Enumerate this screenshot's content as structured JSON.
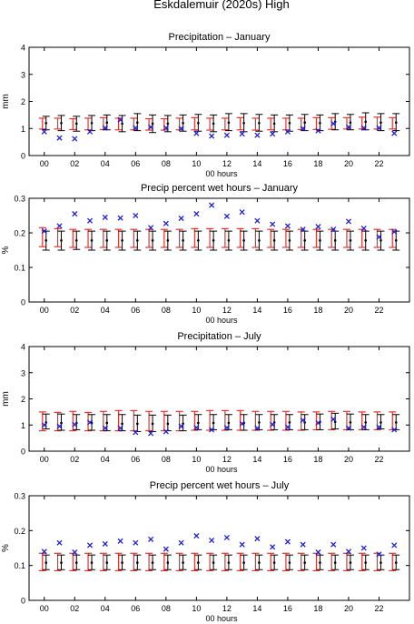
{
  "figure_title": "Eskdalemuir (2020s) High",
  "colors": {
    "model": "#e8322e",
    "observed": "#000000",
    "marker": "#1f1fd6",
    "axis": "#000000",
    "background": "#ffffff"
  },
  "chart_data": [
    {
      "type": "errorbar",
      "title": "Precipitation – January",
      "ylabel": "mm",
      "xlabel": "00 hours",
      "ylim": [
        0,
        4
      ],
      "yticks": [
        "0",
        "1",
        "2",
        "3",
        "4"
      ],
      "xticks": [
        "00",
        "02",
        "04",
        "06",
        "08",
        "10",
        "12",
        "14",
        "16",
        "18",
        "20",
        "22"
      ],
      "hours": [
        0,
        1,
        2,
        3,
        4,
        5,
        6,
        7,
        8,
        9,
        10,
        11,
        12,
        13,
        14,
        15,
        16,
        17,
        18,
        19,
        20,
        21,
        22,
        23
      ],
      "model_ranges": [
        [
          0.98,
          1.38
        ],
        [
          0.98,
          1.38
        ],
        [
          0.96,
          1.36
        ],
        [
          0.95,
          1.38
        ],
        [
          0.96,
          1.4
        ],
        [
          0.95,
          1.38
        ],
        [
          0.95,
          1.38
        ],
        [
          0.94,
          1.36
        ],
        [
          0.94,
          1.36
        ],
        [
          0.95,
          1.38
        ],
        [
          0.95,
          1.4
        ],
        [
          0.94,
          1.38
        ],
        [
          0.95,
          1.38
        ],
        [
          0.95,
          1.4
        ],
        [
          0.94,
          1.38
        ],
        [
          0.95,
          1.38
        ],
        [
          0.95,
          1.38
        ],
        [
          0.96,
          1.38
        ],
        [
          0.96,
          1.4
        ],
        [
          0.97,
          1.4
        ],
        [
          0.98,
          1.4
        ],
        [
          0.98,
          1.42
        ],
        [
          0.98,
          1.42
        ],
        [
          0.98,
          1.4
        ]
      ],
      "observed_ranges": [
        [
          0.95,
          1.45
        ],
        [
          0.92,
          1.48
        ],
        [
          0.9,
          1.45
        ],
        [
          0.92,
          1.48
        ],
        [
          0.95,
          1.5
        ],
        [
          0.88,
          1.48
        ],
        [
          0.92,
          1.55
        ],
        [
          0.85,
          1.5
        ],
        [
          0.88,
          1.48
        ],
        [
          0.9,
          1.5
        ],
        [
          0.9,
          1.52
        ],
        [
          0.88,
          1.5
        ],
        [
          0.92,
          1.55
        ],
        [
          0.88,
          1.55
        ],
        [
          0.9,
          1.52
        ],
        [
          0.88,
          1.5
        ],
        [
          0.9,
          1.5
        ],
        [
          0.92,
          1.52
        ],
        [
          0.92,
          1.5
        ],
        [
          0.95,
          1.55
        ],
        [
          0.95,
          1.52
        ],
        [
          0.95,
          1.58
        ],
        [
          0.92,
          1.55
        ],
        [
          0.92,
          1.55
        ]
      ],
      "observed_mid": [
        1.2,
        1.2,
        1.18,
        1.2,
        1.22,
        1.18,
        1.22,
        1.18,
        1.18,
        1.2,
        1.2,
        1.18,
        1.22,
        1.2,
        1.2,
        1.18,
        1.2,
        1.22,
        1.2,
        1.25,
        1.22,
        1.25,
        1.22,
        1.22
      ],
      "crosses": [
        0.88,
        0.65,
        0.62,
        0.88,
        1.02,
        1.32,
        1.02,
        1.05,
        1.02,
        1.0,
        0.82,
        0.72,
        0.75,
        0.8,
        0.75,
        0.8,
        0.88,
        1.0,
        0.92,
        1.18,
        1.05,
        1.02,
        1.02,
        0.82
      ]
    },
    {
      "type": "errorbar",
      "title": "Precip percent wet hours – January",
      "ylabel": "%",
      "xlabel": "00 hours",
      "ylim": [
        0,
        0.3
      ],
      "yticks": [
        "0",
        "0.1",
        "0.2",
        "0.3"
      ],
      "xticks": [
        "00",
        "02",
        "04",
        "06",
        "08",
        "10",
        "12",
        "14",
        "16",
        "18",
        "20",
        "22"
      ],
      "hours": [
        0,
        1,
        2,
        3,
        4,
        5,
        6,
        7,
        8,
        9,
        10,
        11,
        12,
        13,
        14,
        15,
        16,
        17,
        18,
        19,
        20,
        21,
        22,
        23
      ],
      "model_ranges": [
        [
          0.16,
          0.215
        ],
        [
          0.16,
          0.212
        ],
        [
          0.158,
          0.21
        ],
        [
          0.158,
          0.21
        ],
        [
          0.158,
          0.21
        ],
        [
          0.158,
          0.21
        ],
        [
          0.158,
          0.21
        ],
        [
          0.158,
          0.21
        ],
        [
          0.158,
          0.21
        ],
        [
          0.158,
          0.21
        ],
        [
          0.158,
          0.212
        ],
        [
          0.158,
          0.212
        ],
        [
          0.158,
          0.212
        ],
        [
          0.158,
          0.212
        ],
        [
          0.158,
          0.212
        ],
        [
          0.158,
          0.21
        ],
        [
          0.158,
          0.21
        ],
        [
          0.158,
          0.21
        ],
        [
          0.158,
          0.21
        ],
        [
          0.158,
          0.21
        ],
        [
          0.158,
          0.21
        ],
        [
          0.158,
          0.21
        ],
        [
          0.158,
          0.21
        ],
        [
          0.158,
          0.21
        ]
      ],
      "observed_ranges": [
        [
          0.15,
          0.205
        ],
        [
          0.15,
          0.205
        ],
        [
          0.152,
          0.205
        ],
        [
          0.15,
          0.205
        ],
        [
          0.15,
          0.205
        ],
        [
          0.15,
          0.205
        ],
        [
          0.15,
          0.205
        ],
        [
          0.15,
          0.205
        ],
        [
          0.15,
          0.205
        ],
        [
          0.15,
          0.205
        ],
        [
          0.15,
          0.205
        ],
        [
          0.15,
          0.205
        ],
        [
          0.15,
          0.205
        ],
        [
          0.15,
          0.205
        ],
        [
          0.15,
          0.205
        ],
        [
          0.15,
          0.205
        ],
        [
          0.15,
          0.205
        ],
        [
          0.15,
          0.205
        ],
        [
          0.15,
          0.205
        ],
        [
          0.15,
          0.205
        ],
        [
          0.15,
          0.205
        ],
        [
          0.15,
          0.205
        ],
        [
          0.15,
          0.205
        ],
        [
          0.15,
          0.205
        ]
      ],
      "observed_mid": [
        0.178,
        0.178,
        0.178,
        0.178,
        0.178,
        0.178,
        0.178,
        0.178,
        0.178,
        0.178,
        0.178,
        0.178,
        0.178,
        0.178,
        0.178,
        0.178,
        0.178,
        0.178,
        0.178,
        0.178,
        0.178,
        0.178,
        0.178,
        0.178
      ],
      "crosses": [
        0.205,
        0.22,
        0.255,
        0.235,
        0.245,
        0.243,
        0.25,
        0.215,
        0.227,
        0.242,
        0.255,
        0.28,
        0.248,
        0.26,
        0.235,
        0.225,
        0.22,
        0.21,
        0.218,
        0.21,
        0.233,
        0.213,
        0.188,
        0.203
      ]
    },
    {
      "type": "errorbar",
      "title": "Precipitation – July",
      "ylabel": "mm",
      "xlabel": "00 hours",
      "ylim": [
        0,
        4
      ],
      "yticks": [
        "0",
        "1",
        "2",
        "3",
        "4"
      ],
      "xticks": [
        "00",
        "02",
        "04",
        "06",
        "08",
        "10",
        "12",
        "14",
        "16",
        "18",
        "20",
        "22"
      ],
      "hours": [
        0,
        1,
        2,
        3,
        4,
        5,
        6,
        7,
        8,
        9,
        10,
        11,
        12,
        13,
        14,
        15,
        16,
        17,
        18,
        19,
        20,
        21,
        22,
        23
      ],
      "model_ranges": [
        [
          0.78,
          1.5
        ],
        [
          0.78,
          1.48
        ],
        [
          0.78,
          1.52
        ],
        [
          0.78,
          1.48
        ],
        [
          0.78,
          1.52
        ],
        [
          0.78,
          1.55
        ],
        [
          0.78,
          1.55
        ],
        [
          0.78,
          1.52
        ],
        [
          0.78,
          1.52
        ],
        [
          0.78,
          1.52
        ],
        [
          0.8,
          1.52
        ],
        [
          0.8,
          1.55
        ],
        [
          0.8,
          1.55
        ],
        [
          0.8,
          1.55
        ],
        [
          0.8,
          1.52
        ],
        [
          0.8,
          1.52
        ],
        [
          0.8,
          1.52
        ],
        [
          0.8,
          1.5
        ],
        [
          0.82,
          1.5
        ],
        [
          0.82,
          1.52
        ],
        [
          0.82,
          1.52
        ],
        [
          0.82,
          1.5
        ],
        [
          0.82,
          1.5
        ],
        [
          0.82,
          1.5
        ]
      ],
      "observed_ranges": [
        [
          0.85,
          1.42
        ],
        [
          0.8,
          1.42
        ],
        [
          0.82,
          1.4
        ],
        [
          0.8,
          1.4
        ],
        [
          0.78,
          1.4
        ],
        [
          0.78,
          1.4
        ],
        [
          0.75,
          1.38
        ],
        [
          0.75,
          1.38
        ],
        [
          0.78,
          1.38
        ],
        [
          0.78,
          1.38
        ],
        [
          0.82,
          1.4
        ],
        [
          0.82,
          1.4
        ],
        [
          0.82,
          1.4
        ],
        [
          0.8,
          1.4
        ],
        [
          0.82,
          1.4
        ],
        [
          0.82,
          1.4
        ],
        [
          0.82,
          1.4
        ],
        [
          0.82,
          1.4
        ],
        [
          0.82,
          1.42
        ],
        [
          0.85,
          1.45
        ],
        [
          0.82,
          1.42
        ],
        [
          0.82,
          1.4
        ],
        [
          0.85,
          1.4
        ],
        [
          0.82,
          1.4
        ]
      ],
      "observed_mid": [
        1.1,
        1.08,
        1.08,
        1.08,
        1.08,
        1.05,
        1.05,
        1.05,
        1.05,
        1.05,
        1.08,
        1.08,
        1.08,
        1.08,
        1.1,
        1.1,
        1.1,
        1.1,
        1.12,
        1.12,
        1.1,
        1.1,
        1.1,
        1.1
      ],
      "crosses": [
        1.0,
        0.95,
        1.02,
        1.1,
        0.88,
        0.88,
        0.72,
        0.68,
        0.75,
        0.95,
        0.9,
        0.82,
        0.9,
        1.05,
        0.88,
        1.02,
        0.92,
        1.18,
        1.08,
        1.22,
        0.88,
        0.92,
        0.92,
        0.82
      ]
    },
    {
      "type": "errorbar",
      "title": "Precip percent wet hours – July",
      "ylabel": "%",
      "xlabel": "00 hours",
      "ylim": [
        0,
        0.3
      ],
      "yticks": [
        "0",
        "0.1",
        "0.2",
        "0.3"
      ],
      "xticks": [
        "00",
        "02",
        "04",
        "06",
        "08",
        "10",
        "12",
        "14",
        "16",
        "18",
        "20",
        "22"
      ],
      "hours": [
        0,
        1,
        2,
        3,
        4,
        5,
        6,
        7,
        8,
        9,
        10,
        11,
        12,
        13,
        14,
        15,
        16,
        17,
        18,
        19,
        20,
        21,
        22,
        23
      ],
      "model_ranges": [
        [
          0.085,
          0.135
        ],
        [
          0.085,
          0.135
        ],
        [
          0.085,
          0.135
        ],
        [
          0.085,
          0.135
        ],
        [
          0.085,
          0.135
        ],
        [
          0.085,
          0.135
        ],
        [
          0.085,
          0.135
        ],
        [
          0.085,
          0.135
        ],
        [
          0.085,
          0.135
        ],
        [
          0.085,
          0.135
        ],
        [
          0.085,
          0.135
        ],
        [
          0.085,
          0.135
        ],
        [
          0.085,
          0.135
        ],
        [
          0.085,
          0.135
        ],
        [
          0.085,
          0.135
        ],
        [
          0.085,
          0.135
        ],
        [
          0.085,
          0.135
        ],
        [
          0.085,
          0.135
        ],
        [
          0.085,
          0.135
        ],
        [
          0.085,
          0.135
        ],
        [
          0.085,
          0.135
        ],
        [
          0.085,
          0.135
        ],
        [
          0.085,
          0.135
        ],
        [
          0.085,
          0.135
        ]
      ],
      "observed_ranges": [
        [
          0.088,
          0.13
        ],
        [
          0.088,
          0.13
        ],
        [
          0.088,
          0.13
        ],
        [
          0.088,
          0.13
        ],
        [
          0.088,
          0.13
        ],
        [
          0.088,
          0.13
        ],
        [
          0.088,
          0.13
        ],
        [
          0.088,
          0.13
        ],
        [
          0.088,
          0.13
        ],
        [
          0.088,
          0.13
        ],
        [
          0.088,
          0.13
        ],
        [
          0.088,
          0.13
        ],
        [
          0.088,
          0.13
        ],
        [
          0.088,
          0.13
        ],
        [
          0.088,
          0.13
        ],
        [
          0.088,
          0.13
        ],
        [
          0.088,
          0.13
        ],
        [
          0.088,
          0.13
        ],
        [
          0.088,
          0.13
        ],
        [
          0.088,
          0.13
        ],
        [
          0.088,
          0.13
        ],
        [
          0.088,
          0.13
        ],
        [
          0.088,
          0.13
        ],
        [
          0.088,
          0.13
        ]
      ],
      "observed_mid": [
        0.108,
        0.108,
        0.108,
        0.108,
        0.108,
        0.108,
        0.108,
        0.108,
        0.108,
        0.108,
        0.108,
        0.108,
        0.108,
        0.108,
        0.108,
        0.108,
        0.108,
        0.108,
        0.108,
        0.108,
        0.108,
        0.108,
        0.108,
        0.108
      ],
      "crosses": [
        0.14,
        0.165,
        0.138,
        0.158,
        0.162,
        0.17,
        0.165,
        0.175,
        0.147,
        0.165,
        0.185,
        0.172,
        0.18,
        0.16,
        0.177,
        0.153,
        0.168,
        0.16,
        0.138,
        0.16,
        0.14,
        0.15,
        0.132,
        0.158
      ]
    }
  ]
}
